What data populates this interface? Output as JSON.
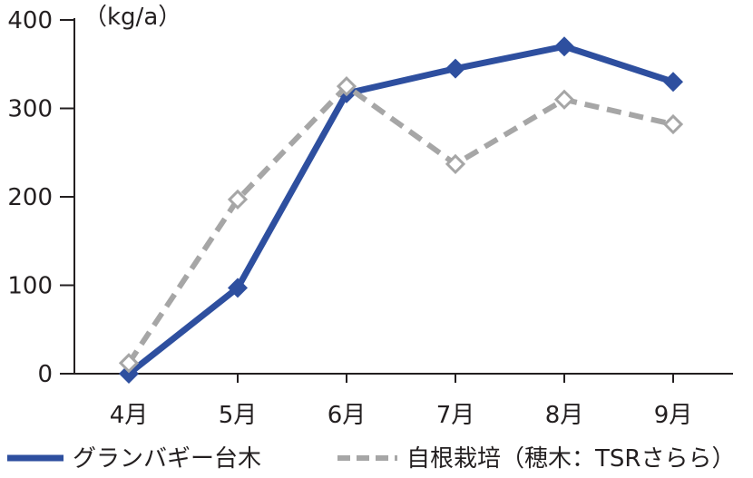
{
  "chart_data": {
    "type": "line",
    "unit_label": "（kg/a）",
    "categories": [
      "4月",
      "5月",
      "6月",
      "7月",
      "8月",
      "9月"
    ],
    "ylim": [
      0,
      400
    ],
    "yticks": [
      0,
      100,
      200,
      300,
      400
    ],
    "grid": false,
    "legend_position": "bottom",
    "series": [
      {
        "name": "グランバギー台木",
        "color": "#2e4f9f",
        "line_style": "solid",
        "marker": "filled-diamond",
        "values": [
          0,
          97,
          317,
          345,
          370,
          330
        ]
      },
      {
        "name": "自根栽培（穂木：TSRさらら）",
        "color": "#a6a6a6",
        "line_style": "dashed",
        "marker": "open-diamond",
        "values": [
          12,
          197,
          325,
          237,
          310,
          282
        ]
      }
    ]
  }
}
